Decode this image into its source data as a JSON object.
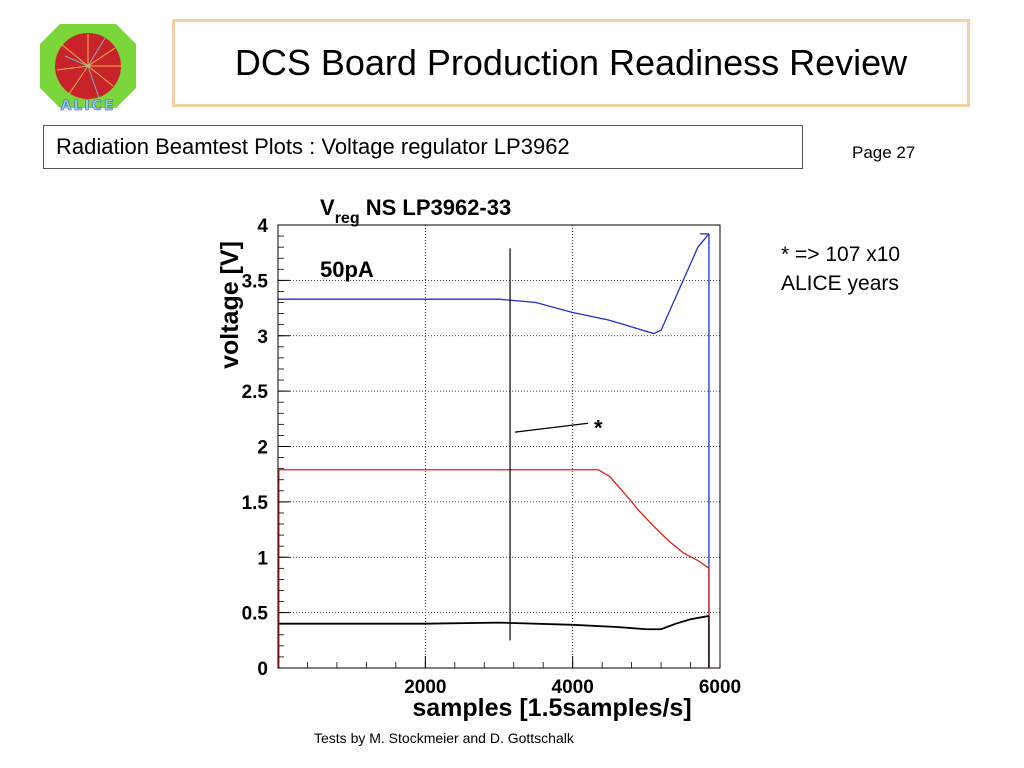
{
  "header": {
    "title": "DCS Board Production Readiness Review",
    "subtitle": "Radiation Beamtest Plots : Voltage regulator LP3962",
    "page": "Page 27"
  },
  "logo": {
    "text": "ALICE"
  },
  "note": {
    "line1": "* => 107 x10",
    "line2": "ALICE years"
  },
  "footer": {
    "credit": "Tests by M. Stockmeier and D. Gottschalk"
  },
  "colors": {
    "title_border": "#f3d0a6",
    "series_blue": "#1f2fd0",
    "series_red": "#e0201a",
    "series_black": "#000000"
  },
  "chart_data": {
    "type": "line",
    "title_main": "V",
    "title_sub": "reg",
    "title_rest": " NS LP3962-33",
    "annotation": "50pA",
    "marker_label": "*",
    "xlabel": "samples [1.5samples/s]",
    "ylabel": "voltage [V]",
    "xlim": [
      0,
      6000
    ],
    "ylim": [
      0,
      4
    ],
    "xticks": [
      2000,
      4000,
      6000
    ],
    "xtick_labels": [
      "2000",
      "4000",
      "6000"
    ],
    "yticks": [
      0,
      0.5,
      1,
      1.5,
      2,
      2.5,
      3,
      3.5,
      4
    ],
    "ytick_labels": [
      "0",
      "0.5",
      "1",
      "1.5",
      "2",
      "2.5",
      "3",
      "3.5",
      "4"
    ],
    "grid": true,
    "marker_x": 3150,
    "series": [
      {
        "color": "#1f2fd0",
        "x": [
          0,
          1000,
          2000,
          3000,
          3500,
          4000,
          4500,
          4900,
          5100,
          5200,
          5400,
          5600,
          5700,
          5850
        ],
        "y": [
          3.33,
          3.33,
          3.33,
          3.33,
          3.3,
          3.21,
          3.14,
          3.06,
          3.02,
          3.05,
          3.35,
          3.65,
          3.8,
          3.92
        ]
      },
      {
        "color": "#e0201a",
        "x": [
          0,
          1000,
          2000,
          3000,
          4000,
          4350,
          4500,
          4700,
          4900,
          5100,
          5300,
          5500,
          5700,
          5850
        ],
        "y": [
          1.79,
          1.79,
          1.79,
          1.79,
          1.79,
          1.79,
          1.73,
          1.58,
          1.42,
          1.28,
          1.15,
          1.04,
          0.97,
          0.9
        ]
      },
      {
        "color": "#000000",
        "x": [
          0,
          1000,
          2000,
          3000,
          4000,
          4600,
          5000,
          5200,
          5400,
          5600,
          5850
        ],
        "y": [
          0.4,
          0.4,
          0.4,
          0.41,
          0.39,
          0.37,
          0.35,
          0.35,
          0.4,
          0.44,
          0.47
        ]
      }
    ]
  }
}
